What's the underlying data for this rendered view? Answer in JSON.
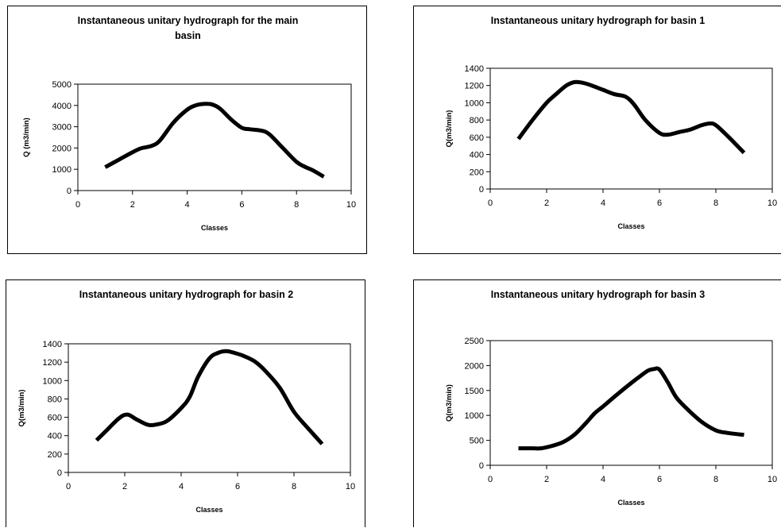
{
  "chart_data": [
    {
      "type": "line",
      "title": [
        "Instantaneous unitary hydrograph for the main",
        "basin"
      ],
      "xlabel": "Classes",
      "ylabel": "Q (m3/min)",
      "xlim": [
        0,
        10
      ],
      "ylim": [
        0,
        5000
      ],
      "xticks": [
        "0",
        "2",
        "4",
        "6",
        "8",
        "10"
      ],
      "yticks": [
        "0",
        "1000",
        "2000",
        "3000",
        "4000",
        "5000"
      ],
      "grid": false,
      "legend": "none",
      "line_color": "#000000",
      "x": [
        1,
        1.5,
        2,
        2.3,
        2.7,
        3,
        3.5,
        4,
        4.3,
        4.6,
        4.9,
        5.2,
        5.6,
        6,
        6.3,
        6.7,
        7,
        7.5,
        8,
        8.3,
        8.6,
        9
      ],
      "y": [
        1100,
        1450,
        1800,
        1980,
        2100,
        2350,
        3200,
        3800,
        4000,
        4070,
        4050,
        3850,
        3350,
        2950,
        2880,
        2820,
        2650,
        2000,
        1350,
        1120,
        950,
        650
      ]
    },
    {
      "type": "line",
      "title": [
        "Instantaneous unitary hydrograph for basin 1"
      ],
      "xlabel": "Classes",
      "ylabel": "Q(m3/min)",
      "xlim": [
        0,
        10
      ],
      "ylim": [
        0,
        1400
      ],
      "xticks": [
        "0",
        "2",
        "4",
        "6",
        "8",
        "10"
      ],
      "yticks": [
        "0",
        "200",
        "400",
        "600",
        "800",
        "1000",
        "1200",
        "1400"
      ],
      "grid": false,
      "legend": "none",
      "line_color": "#000000",
      "x": [
        1,
        1.5,
        2,
        2.3,
        2.7,
        3,
        3.3,
        3.6,
        4,
        4.4,
        4.8,
        5.1,
        5.5,
        6,
        6.3,
        6.7,
        7.1,
        7.5,
        7.8,
        8,
        8.4,
        9
      ],
      "y": [
        580,
        800,
        1000,
        1090,
        1200,
        1240,
        1230,
        1200,
        1150,
        1100,
        1070,
        980,
        800,
        650,
        630,
        660,
        690,
        740,
        760,
        740,
        620,
        420
      ]
    },
    {
      "type": "line",
      "title": [
        "Instantaneous unitary hydrograph for basin 2"
      ],
      "xlabel": "Classes",
      "ylabel": "Q(m3/min)",
      "xlim": [
        0,
        10
      ],
      "ylim": [
        0,
        1400
      ],
      "xticks": [
        "0",
        "2",
        "4",
        "6",
        "8",
        "10"
      ],
      "yticks": [
        "0",
        "200",
        "400",
        "600",
        "800",
        "1000",
        "1200",
        "1400"
      ],
      "grid": false,
      "legend": "none",
      "line_color": "#000000",
      "x": [
        1,
        1.3,
        1.8,
        2.1,
        2.4,
        2.8,
        3.1,
        3.5,
        4,
        4.3,
        4.6,
        5,
        5.3,
        5.6,
        5.9,
        6.2,
        6.6,
        7,
        7.5,
        8,
        8.5,
        9
      ],
      "y": [
        350,
        440,
        590,
        630,
        580,
        520,
        520,
        560,
        700,
        820,
        1040,
        1240,
        1300,
        1320,
        1300,
        1270,
        1210,
        1100,
        920,
        660,
        480,
        310
      ]
    },
    {
      "type": "line",
      "title": [
        "Instantaneous unitary hydrograph for basin 3"
      ],
      "xlabel": "Classes",
      "ylabel": "Q(m3/min)",
      "xlim": [
        0,
        10
      ],
      "ylim": [
        0,
        2500
      ],
      "xticks": [
        "0",
        "2",
        "4",
        "6",
        "8",
        "10"
      ],
      "yticks": [
        "0",
        "500",
        "1000",
        "1500",
        "2000",
        "2500"
      ],
      "grid": false,
      "legend": "none",
      "line_color": "#000000",
      "x": [
        1,
        1.5,
        1.8,
        2.2,
        2.6,
        3,
        3.4,
        3.7,
        4,
        4.5,
        5,
        5.3,
        5.6,
        5.8,
        6,
        6.3,
        6.6,
        7,
        7.5,
        8,
        8.4,
        9
      ],
      "y": [
        340,
        340,
        340,
        390,
        470,
        620,
        850,
        1040,
        1180,
        1420,
        1650,
        1780,
        1900,
        1930,
        1920,
        1660,
        1360,
        1120,
        870,
        700,
        650,
        610
      ]
    }
  ]
}
